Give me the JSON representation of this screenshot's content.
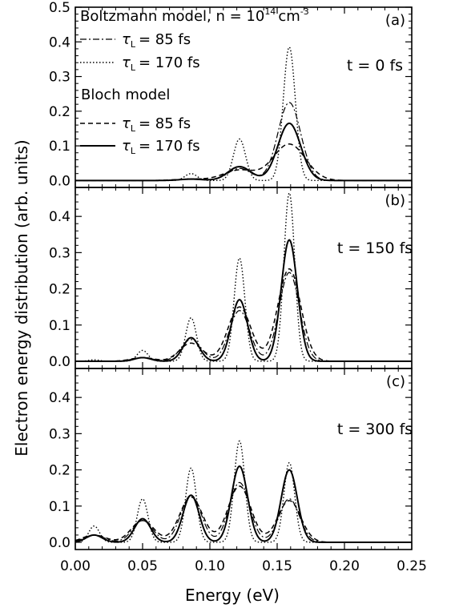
{
  "chart_data": {
    "type": "line",
    "xlabel": "Energy (eV)",
    "ylabel": "Electron energy distribution (arb. units)",
    "xlim": [
      0.0,
      0.25
    ],
    "xticks": [
      "0.00",
      "0.05",
      "0.10",
      "0.15",
      "0.20",
      "0.25"
    ],
    "xtick_values": [
      0.0,
      0.05,
      0.1,
      0.15,
      0.2,
      0.25
    ],
    "grid": false,
    "legend": {
      "placement": "top-left",
      "group1_title": "Boltzmann model, n = 10",
      "group1_exponent": "14",
      "group1_unit": "cm",
      "group1_unit_exponent": "-3",
      "group2_title": "Bloch model",
      "entries": [
        {
          "symbol": "τ",
          "subscript": "L",
          "text": "= 85 fs",
          "group": "Boltzmann",
          "dash": "dashdot"
        },
        {
          "symbol": "τ",
          "subscript": "L",
          "text": "= 170 fs",
          "group": "Boltzmann",
          "dash": "dotted"
        },
        {
          "symbol": "τ",
          "subscript": "L",
          "text": "= 85 fs",
          "group": "Bloch",
          "dash": "dashed"
        },
        {
          "symbol": "τ",
          "subscript": "L",
          "text": "= 170 fs",
          "group": "Bloch",
          "dash": "solid"
        }
      ]
    },
    "panels": [
      {
        "label": "(a)",
        "annotation": "t = 0 fs",
        "ylim": [
          -0.02,
          0.5
        ],
        "yticks": [
          "0.0",
          "0.1",
          "0.2",
          "0.3",
          "0.4",
          "0.5"
        ],
        "ytick_values": [
          0.0,
          0.1,
          0.2,
          0.3,
          0.4,
          0.5
        ],
        "peaks": {
          "boltzmann_85": {
            "amps": [
              0.0,
              0.005,
              0.035,
              0.225
            ],
            "width": 0.0085
          },
          "boltzmann_170": {
            "amps": [
              0.0,
              0.02,
              0.12,
              0.385
            ],
            "width": 0.0045
          },
          "bloch_85": {
            "amps": [
              0.0,
              0.004,
              0.03,
              0.105
            ],
            "width": 0.012
          },
          "bloch_170": {
            "amps": [
              0.0,
              0.004,
              0.04,
              0.165
            ],
            "width": 0.0085
          }
        }
      },
      {
        "label": "(b)",
        "annotation": "t = 150 fs",
        "ylim": [
          -0.02,
          0.48
        ],
        "yticks": [
          "0.0",
          "0.1",
          "0.2",
          "0.3",
          "0.4"
        ],
        "ytick_values": [
          0.0,
          0.1,
          0.2,
          0.3,
          0.4
        ],
        "peaks": {
          "boltzmann_85": {
            "amps": [
              0.0,
              0.01,
              0.06,
              0.14,
              0.245
            ],
            "width": 0.0075
          },
          "boltzmann_170": {
            "amps": [
              0.004,
              0.03,
              0.12,
              0.285,
              0.465
            ],
            "width": 0.004
          },
          "bloch_85": {
            "amps": [
              0.0,
              0.01,
              0.05,
              0.15,
              0.255
            ],
            "width": 0.0085
          },
          "bloch_170": {
            "amps": [
              0.0,
              0.01,
              0.065,
              0.17,
              0.335
            ],
            "width": 0.006
          }
        }
      },
      {
        "label": "(c)",
        "annotation": "t = 300 fs",
        "ylim": [
          -0.02,
          0.48
        ],
        "yticks": [
          "0.0",
          "0.1",
          "0.2",
          "0.3",
          "0.4"
        ],
        "ytick_values": [
          0.0,
          0.1,
          0.2,
          0.3,
          0.4
        ],
        "peaks": {
          "boltzmann_85": {
            "amps": [
              0.02,
              0.06,
              0.13,
              0.165,
              0.12
            ],
            "width": 0.0075
          },
          "boltzmann_170": {
            "amps": [
              0.045,
              0.12,
              0.205,
              0.28,
              0.22
            ],
            "width": 0.004
          },
          "bloch_85": {
            "amps": [
              0.02,
              0.06,
              0.125,
              0.155,
              0.115
            ],
            "width": 0.0085
          },
          "bloch_170": {
            "amps": [
              0.02,
              0.065,
              0.13,
              0.21,
              0.2
            ],
            "width": 0.006
          }
        }
      }
    ],
    "peak_centers": [
      0.014,
      0.05,
      0.086,
      0.122,
      0.159
    ]
  }
}
